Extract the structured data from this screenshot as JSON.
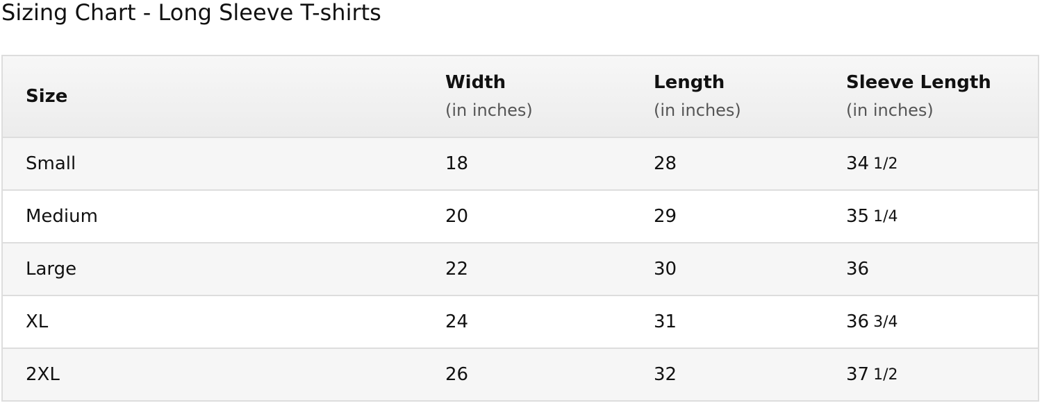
{
  "title": "Sizing Chart - Long Sleeve T-shirts",
  "columns": [
    {
      "label": "Size",
      "unit": ""
    },
    {
      "label": "Width",
      "unit": "(in inches)"
    },
    {
      "label": "Length",
      "unit": "(in inches)"
    },
    {
      "label": "Sleeve Length",
      "unit": "(in inches)"
    }
  ],
  "rows": [
    {
      "size": "Small",
      "width": "18",
      "length": "28",
      "sleeve": "34",
      "sleeve_frac": "1/2"
    },
    {
      "size": "Medium",
      "width": "20",
      "length": "29",
      "sleeve": "35",
      "sleeve_frac": "1/4"
    },
    {
      "size": "Large",
      "width": "22",
      "length": "30",
      "sleeve": "36",
      "sleeve_frac": ""
    },
    {
      "size": "XL",
      "width": "24",
      "length": "31",
      "sleeve": "36",
      "sleeve_frac": "3/4"
    },
    {
      "size": "2XL",
      "width": "26",
      "length": "32",
      "sleeve": "37",
      "sleeve_frac": "1/2"
    }
  ]
}
